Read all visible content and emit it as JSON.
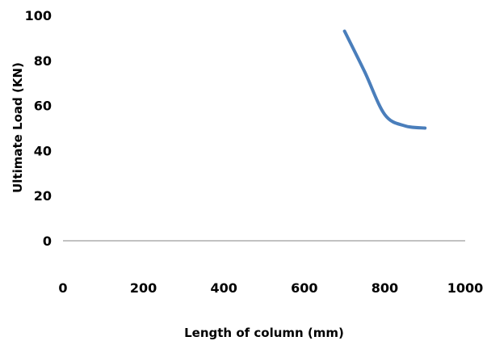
{
  "chart_data": {
    "type": "line",
    "title": "",
    "xlabel": "Length of column  (mm)",
    "ylabel": "Ultimate Load (KN)",
    "xlim": [
      0,
      1000
    ],
    "ylim": [
      0,
      100
    ],
    "x_ticks": [
      "0",
      "200",
      "400",
      "600",
      "800",
      "1000"
    ],
    "y_ticks": [
      "0",
      "20",
      "40",
      "60",
      "80",
      "100"
    ],
    "grid": false,
    "legend": "none",
    "series": [
      {
        "color": "#4a7ebb",
        "x": [
          700,
          750,
          800,
          850,
          900
        ],
        "y": [
          93,
          75,
          56,
          51,
          50
        ]
      }
    ]
  }
}
